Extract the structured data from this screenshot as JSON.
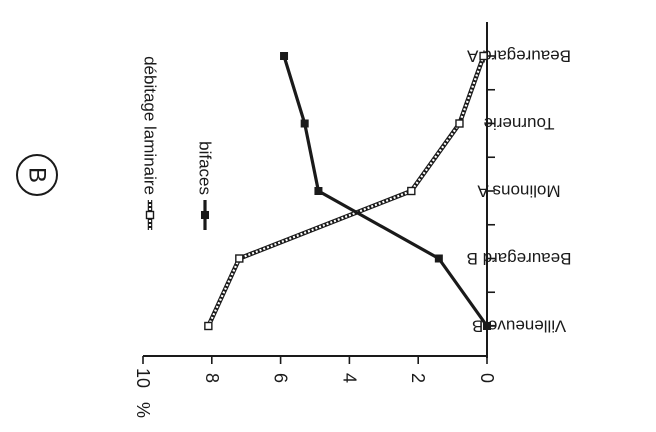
{
  "panel_label": "B",
  "chart_data": {
    "type": "line",
    "orientation": "rotated-90-clockwise",
    "categories": [
      "Villeneuve B",
      "Beauregard B",
      "Molinons A",
      "Tournerie",
      "Beauregard A"
    ],
    "series": [
      {
        "name": "débitage laminaire",
        "marker": "hollow-square",
        "line": "double-hatched",
        "values": [
          8.1,
          7.2,
          2.2,
          0.8,
          0.1
        ]
      },
      {
        "name": "bifaces",
        "marker": "filled-square",
        "line": "solid-bold",
        "values": [
          0.0,
          1.4,
          4.9,
          5.3,
          5.9
        ]
      }
    ],
    "value_axis": {
      "unit_label": "%",
      "ylim": [
        0,
        10
      ],
      "ticks": [
        "0",
        "2",
        "4",
        "6",
        "8",
        "10"
      ]
    },
    "legend": "upper-left",
    "grid": false,
    "colors": {
      "ink": "#1a1a1a",
      "background": "#ffffff"
    }
  }
}
